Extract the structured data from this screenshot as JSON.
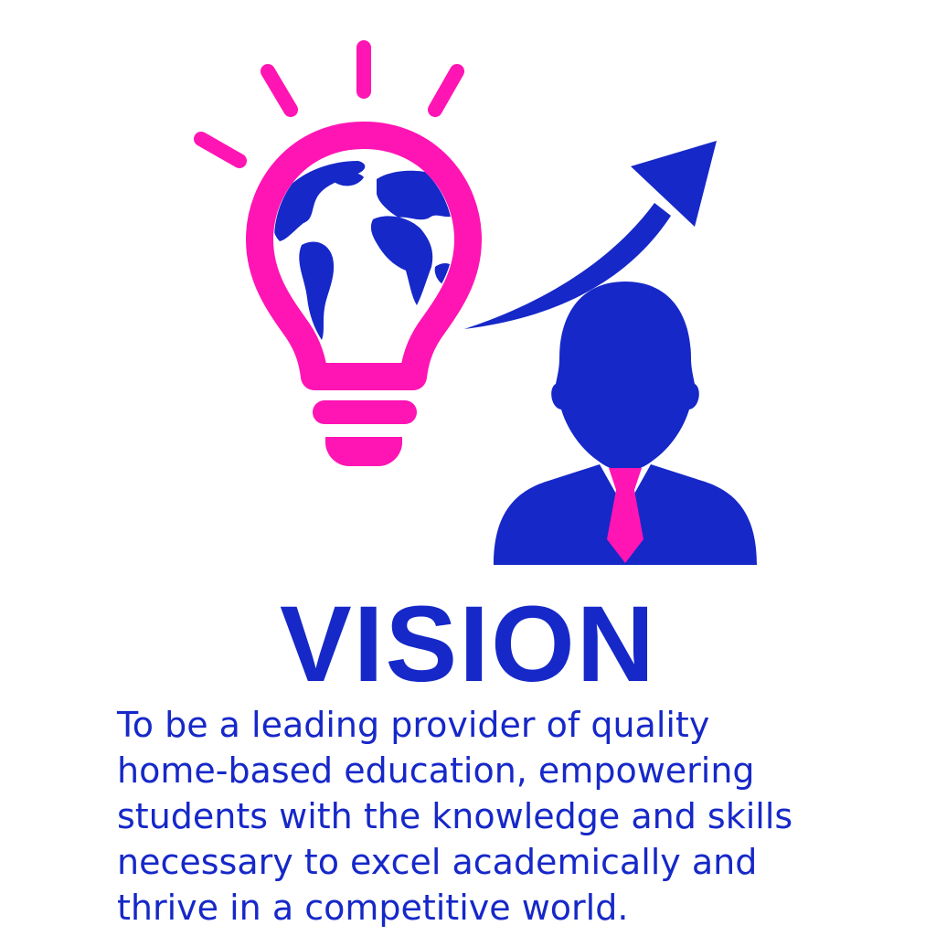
{
  "colors": {
    "blue": "#1628c8",
    "pink": "#ff14b4",
    "background": "#ffffff"
  },
  "illustration": {
    "icons": [
      "lightbulb-icon",
      "globe-icon",
      "light-ray-icon",
      "growth-arrow-icon",
      "businessman-icon",
      "tie-icon"
    ]
  },
  "heading": "VISION",
  "statement": "To be a leading provider of quality\nhome-based education, empowering\nstudents with the knowledge and skills\nnecessary to excel academically and\nthrive in a competitive world."
}
